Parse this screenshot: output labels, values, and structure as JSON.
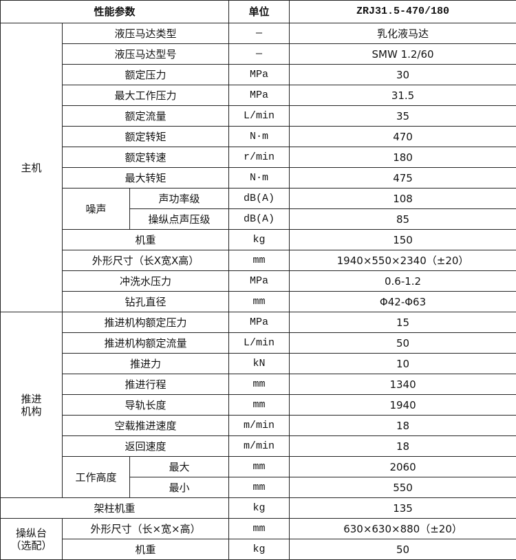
{
  "header": {
    "param": "性能参数",
    "unit": "单位",
    "model": "ZRJ31.5-470/180"
  },
  "sections": [
    {
      "label": "主机",
      "rows": [
        {
          "param": "液压马达类型",
          "unit": "—",
          "value": "乳化液马达"
        },
        {
          "param": "液压马达型号",
          "unit": "—",
          "value": "SMW 1.2/60"
        },
        {
          "param": "额定压力",
          "unit": "MPa",
          "value": "30"
        },
        {
          "param": "最大工作压力",
          "unit": "MPa",
          "value": "31.5"
        },
        {
          "param": "额定流量",
          "unit": "L/min",
          "value": "35"
        },
        {
          "param": "额定转矩",
          "unit": "N·m",
          "value": "470"
        },
        {
          "param": "额定转速",
          "unit": "r/min",
          "value": "180"
        },
        {
          "param": "最大转矩",
          "unit": "N·m",
          "value": "475"
        },
        {
          "group": "噪声",
          "items": [
            {
              "param": "声功率级",
              "unit": "dB(A)",
              "value": "108"
            },
            {
              "param": "操纵点声压级",
              "unit": "dB(A)",
              "value": "85"
            }
          ]
        },
        {
          "param": "机重",
          "unit": "kg",
          "value": "150"
        },
        {
          "param": "外形尺寸（长X宽X高）",
          "unit": "mm",
          "value": "1940×550×2340（±20）"
        },
        {
          "param": "冲洗水压力",
          "unit": "MPa",
          "value": "0.6-1.2"
        },
        {
          "param": "钻孔直径",
          "unit": "mm",
          "value": "Φ42-Φ63"
        }
      ]
    },
    {
      "label": "推进\n机构",
      "rows": [
        {
          "param": "推进机构额定压力",
          "unit": "MPa",
          "value": "15"
        },
        {
          "param": "推进机构额定流量",
          "unit": "L/min",
          "value": "50"
        },
        {
          "param": "推进力",
          "unit": "kN",
          "value": "10"
        },
        {
          "param": "推进行程",
          "unit": "mm",
          "value": "1340"
        },
        {
          "param": "导轨长度",
          "unit": "mm",
          "value": "1940"
        },
        {
          "param": "空载推进速度",
          "unit": "m/min",
          "value": "18"
        },
        {
          "param": "返回速度",
          "unit": "m/min",
          "value": "18"
        },
        {
          "group": "工作高度",
          "items": [
            {
              "param": "最大",
              "unit": "mm",
              "value": "2060"
            },
            {
              "param": "最小",
              "unit": "mm",
              "value": "550"
            }
          ]
        }
      ]
    },
    {
      "label": "",
      "rows": [
        {
          "param": "架柱机重",
          "unit": "kg",
          "value": "135"
        }
      ]
    },
    {
      "label": "操纵台\n（选配）",
      "rows": [
        {
          "param": "外形尺寸（长×宽×高）",
          "unit": "mm",
          "value": "630×630×880（±20）"
        },
        {
          "param": "机重",
          "unit": "kg",
          "value": "50"
        }
      ]
    }
  ]
}
